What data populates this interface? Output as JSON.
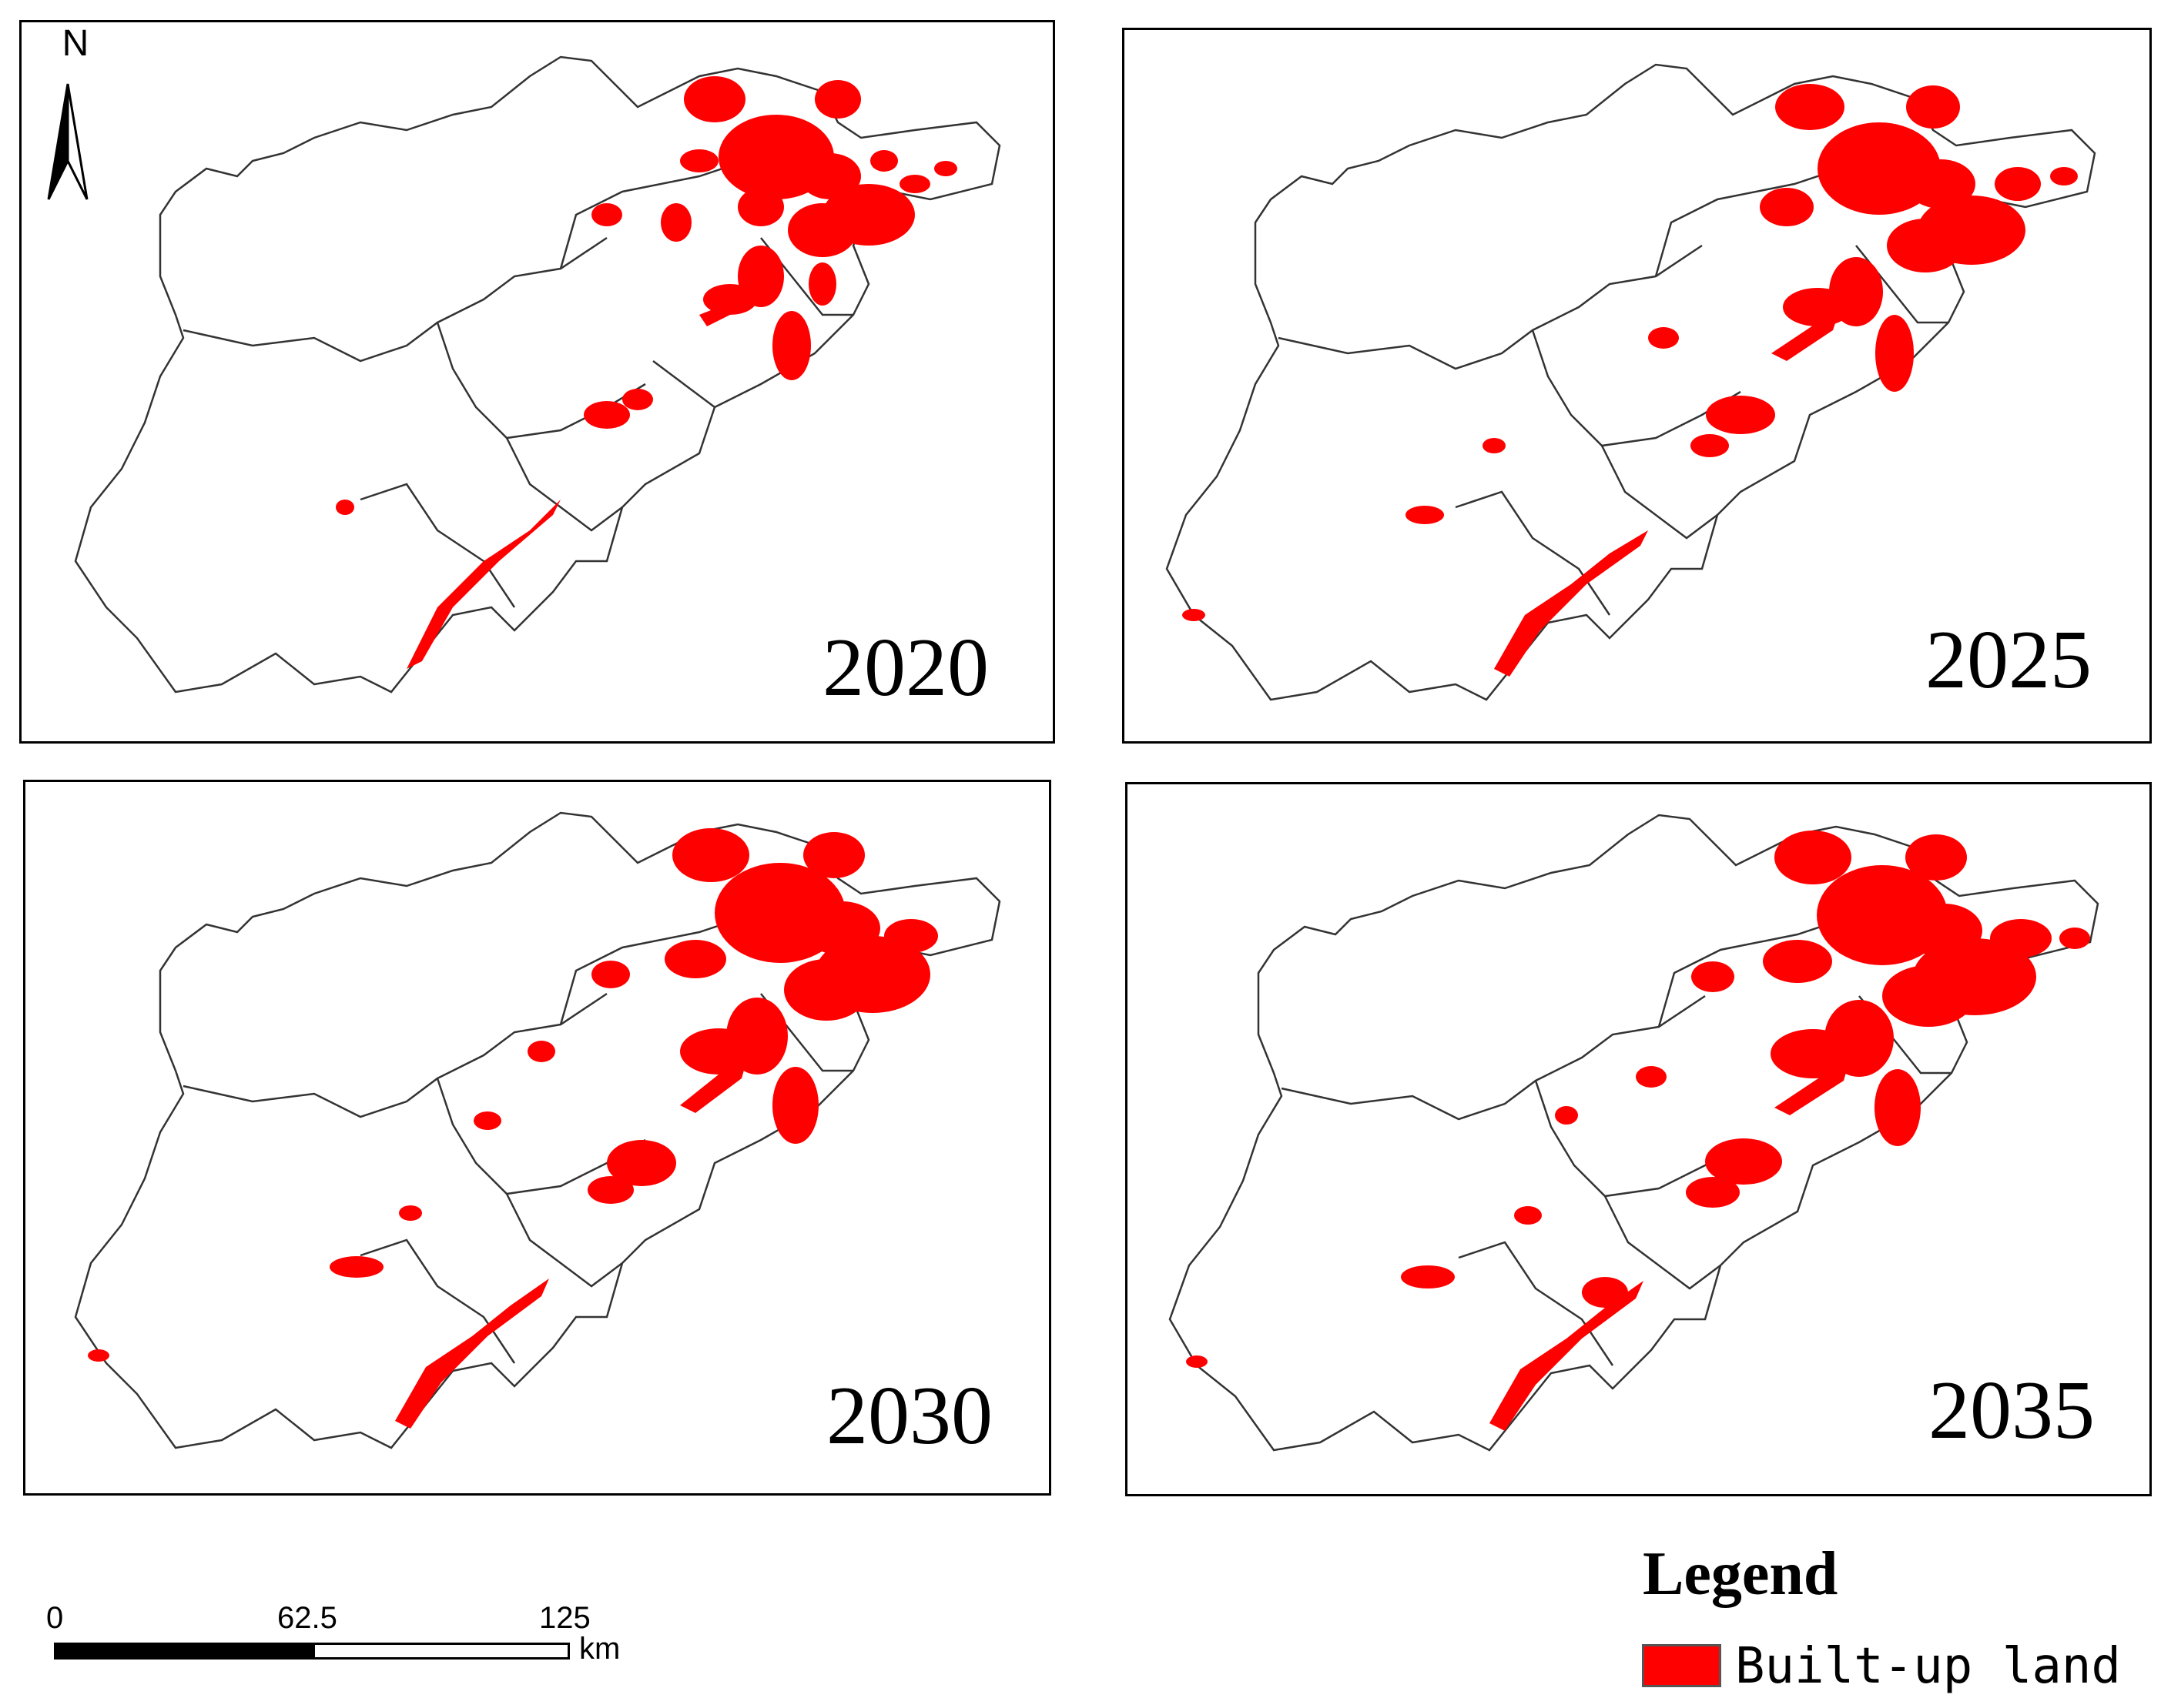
{
  "panels": [
    {
      "year": "2020"
    },
    {
      "year": "2025"
    },
    {
      "year": "2030"
    },
    {
      "year": "2035"
    }
  ],
  "north_arrow": {
    "label": "N"
  },
  "scale_bar": {
    "ticks": [
      "0",
      "62.5",
      "125"
    ],
    "unit": "km"
  },
  "legend": {
    "title": "Legend",
    "items": [
      {
        "label": "Built-up land",
        "color": "#ff0000"
      }
    ]
  },
  "colors": {
    "built_up": "#ff0000",
    "boundary": "#333333"
  }
}
